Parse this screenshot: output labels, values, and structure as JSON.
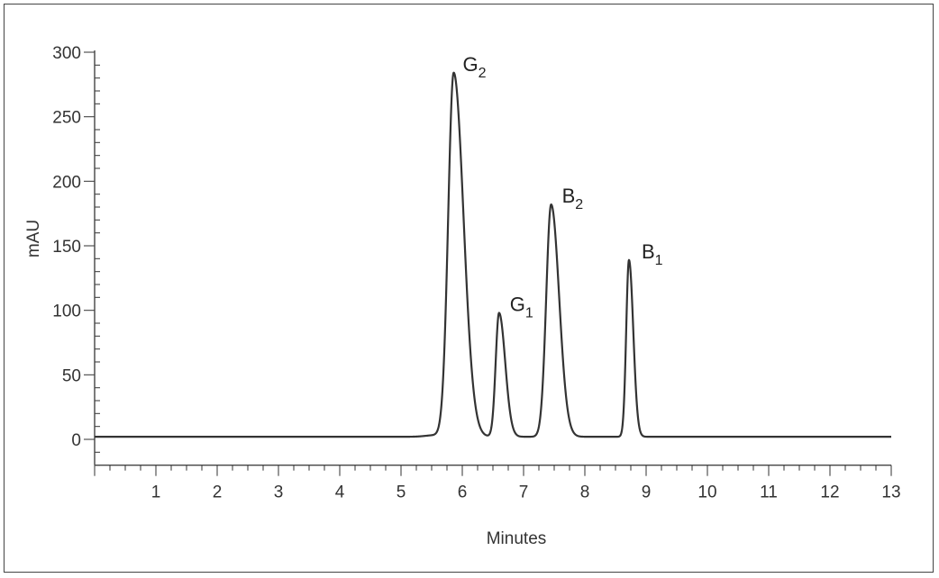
{
  "chart_data": {
    "type": "line",
    "title": "",
    "xlabel": "Minutes",
    "ylabel": "mAU",
    "xlim": [
      0,
      13
    ],
    "ylim": [
      -20,
      300
    ],
    "xticks": [
      1,
      2,
      3,
      4,
      5,
      6,
      7,
      8,
      9,
      10,
      11,
      12,
      13
    ],
    "xtick_labels": [
      "1",
      "2",
      "3",
      "4",
      "5",
      "6",
      "7",
      "8",
      "9",
      "10",
      "11",
      "12",
      "13"
    ],
    "yticks": [
      0,
      50,
      100,
      150,
      200,
      250,
      300
    ],
    "ytick_labels": [
      "0",
      "50",
      "100",
      "150",
      "200",
      "250",
      "300"
    ],
    "grid": false,
    "line_color": "#333333",
    "baseline": 2,
    "peaks": [
      {
        "label": "G",
        "subscript": "2",
        "x": 5.86,
        "y": 284
      },
      {
        "label": "G",
        "subscript": "1",
        "x": 6.6,
        "y": 98
      },
      {
        "label": "B",
        "subscript": "2",
        "x": 7.45,
        "y": 182
      },
      {
        "label": "B",
        "subscript": "1",
        "x": 8.72,
        "y": 139
      }
    ]
  }
}
